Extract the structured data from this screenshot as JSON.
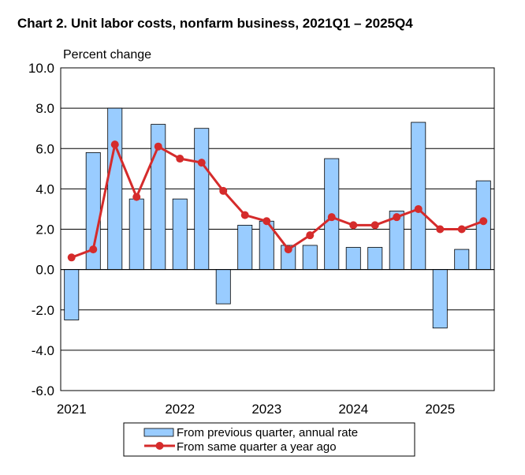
{
  "chart_data": {
    "type": "bar",
    "title": "Chart  2. Unit labor costs, nonfarm business, 2021Q1 – 2025Q4",
    "ylabel": "Percent change",
    "ylim": [
      -6.0,
      10.0
    ],
    "y_ticks": [
      "10.0",
      "8.0",
      "6.0",
      "4.0",
      "2.0",
      "0.0",
      "-2.0",
      "-4.0",
      "-6.0"
    ],
    "y_tick_values": [
      10,
      8,
      6,
      4,
      2,
      0,
      -2,
      -4,
      -6
    ],
    "grid": true,
    "categories": [
      "2021Q1",
      "2021Q2",
      "2021Q3",
      "2021Q4",
      "2022Q1",
      "2022Q2",
      "2022Q3",
      "2022Q4",
      "2023Q1",
      "2023Q2",
      "2023Q3",
      "2023Q4",
      "2024Q1",
      "2024Q2",
      "2024Q3",
      "2024Q4",
      "2025Q1",
      "2025Q2",
      "2025Q3",
      "2025Q4"
    ],
    "x_tick_labels": [
      {
        "label": "2021",
        "category": "2021Q1"
      },
      {
        "label": "2022",
        "category": "2022Q2"
      },
      {
        "label": "2023",
        "category": "2023Q2"
      },
      {
        "label": "2024",
        "category": "2024Q2"
      },
      {
        "label": "2025",
        "category": "2025Q2"
      }
    ],
    "series": [
      {
        "name": "From previous quarter, annual rate",
        "kind": "bar",
        "color": "#99ccff",
        "values": [
          -2.5,
          5.8,
          8.0,
          3.5,
          7.2,
          3.5,
          7.0,
          -1.7,
          2.2,
          2.4,
          1.2,
          1.2,
          5.5,
          1.1,
          1.1,
          2.9,
          7.3,
          -2.9,
          1.0,
          4.4
        ]
      },
      {
        "name": "From same quarter a year ago",
        "kind": "line",
        "color": "#d52b2b",
        "values": [
          0.6,
          1.0,
          6.2,
          3.6,
          6.1,
          5.5,
          5.3,
          3.9,
          2.7,
          2.4,
          1.0,
          1.7,
          2.6,
          2.2,
          2.2,
          2.6,
          3.0,
          2.0,
          2.0,
          2.4
        ]
      }
    ],
    "legend_position": "bottom-center"
  }
}
